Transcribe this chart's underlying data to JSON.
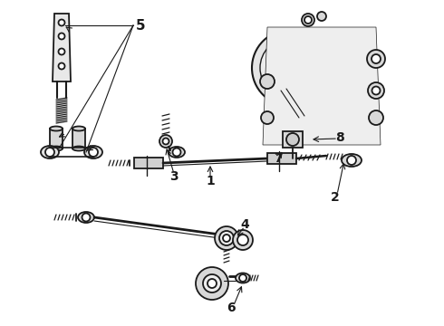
{
  "background_color": "#ffffff",
  "line_color": "#1a1a1a",
  "label_color": "#000000",
  "figsize": [
    4.9,
    3.6
  ],
  "dpi": 100,
  "annotation_fontsize": 10,
  "part_lw": 1.3
}
